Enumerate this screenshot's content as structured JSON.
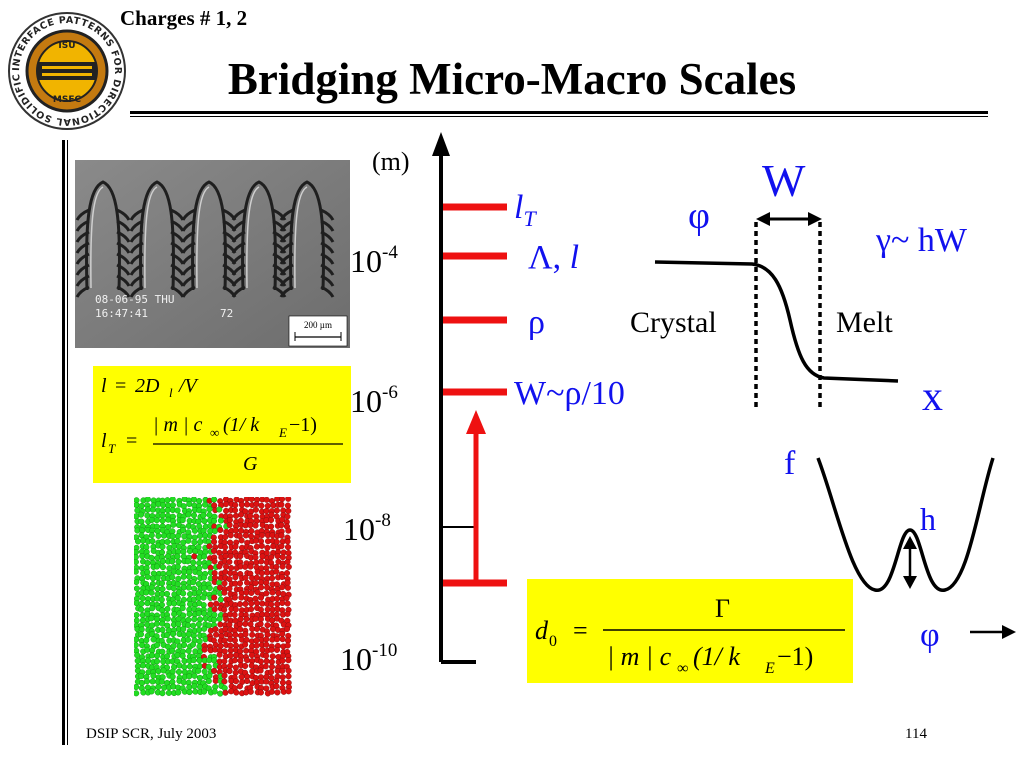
{
  "header": {
    "charges": "Charges # 1, 2",
    "title": "Bridging Micro-Macro Scales"
  },
  "logo": {
    "ring_text": "INTERFACE PATTERNS FOR DIRECTIONAL SOLIDIFICATION",
    "top_text": "ISU",
    "bottom_text": "MSFC"
  },
  "photo": {
    "stamp_line1": "08-06-95 THU",
    "stamp_line2": "16:47:41",
    "stamp_number": "72",
    "scale_bar": "200 µm"
  },
  "scale_axis": {
    "unit": "(m)",
    "ticks": [
      {
        "base": "10",
        "exp": "-4"
      },
      {
        "base": "10",
        "exp": "-6"
      },
      {
        "base": "10",
        "exp": "-8"
      },
      {
        "base": "10",
        "exp": "-10"
      }
    ],
    "markers": {
      "lT": {
        "main": "l",
        "sub": "T"
      },
      "lambda": "Λ, ",
      "lambda_l": "l",
      "rho": "ρ",
      "w": "W~ρ/10"
    }
  },
  "formulas": {
    "l_lhs": "l",
    "l_eq": "=",
    "l_rhs_coef": "2D",
    "l_rhs_sub": "l",
    "l_rhs_tail": "/V",
    "lT_lhs": "l",
    "lT_sub": "T",
    "lT_eq": "=",
    "lT_num": "| m | c",
    "lT_num_sub": "∞",
    "lT_num_tail": "(1/ k",
    "lT_num_sub2": "E",
    "lT_num_tail2": " −1)",
    "lT_den": "G",
    "d0_lhs": "d",
    "d0_sub": "0",
    "d0_eq": "=",
    "d0_num": "Γ",
    "d0_den": "| m | c",
    "d0_den_sub": "∞",
    "d0_den_tail": "(1/ k",
    "d0_den_sub2": "E",
    "d0_den_tail2": " −1)"
  },
  "interface_diagram": {
    "phi": "φ",
    "w": "W",
    "gamma": "γ~ hW",
    "crystal": "Crystal",
    "melt": "Melt",
    "x": "x"
  },
  "potential_diagram": {
    "f": "f",
    "h": "h",
    "phi": "φ"
  },
  "colors": {
    "marker_red": "#ee1111",
    "label_blue": "#1111ee",
    "box_yellow": "#ffff00",
    "particle_green": "#22dd22",
    "particle_red": "#dd1111"
  },
  "footer": {
    "left": "DSIP SCR, July 2003",
    "page": "114"
  }
}
